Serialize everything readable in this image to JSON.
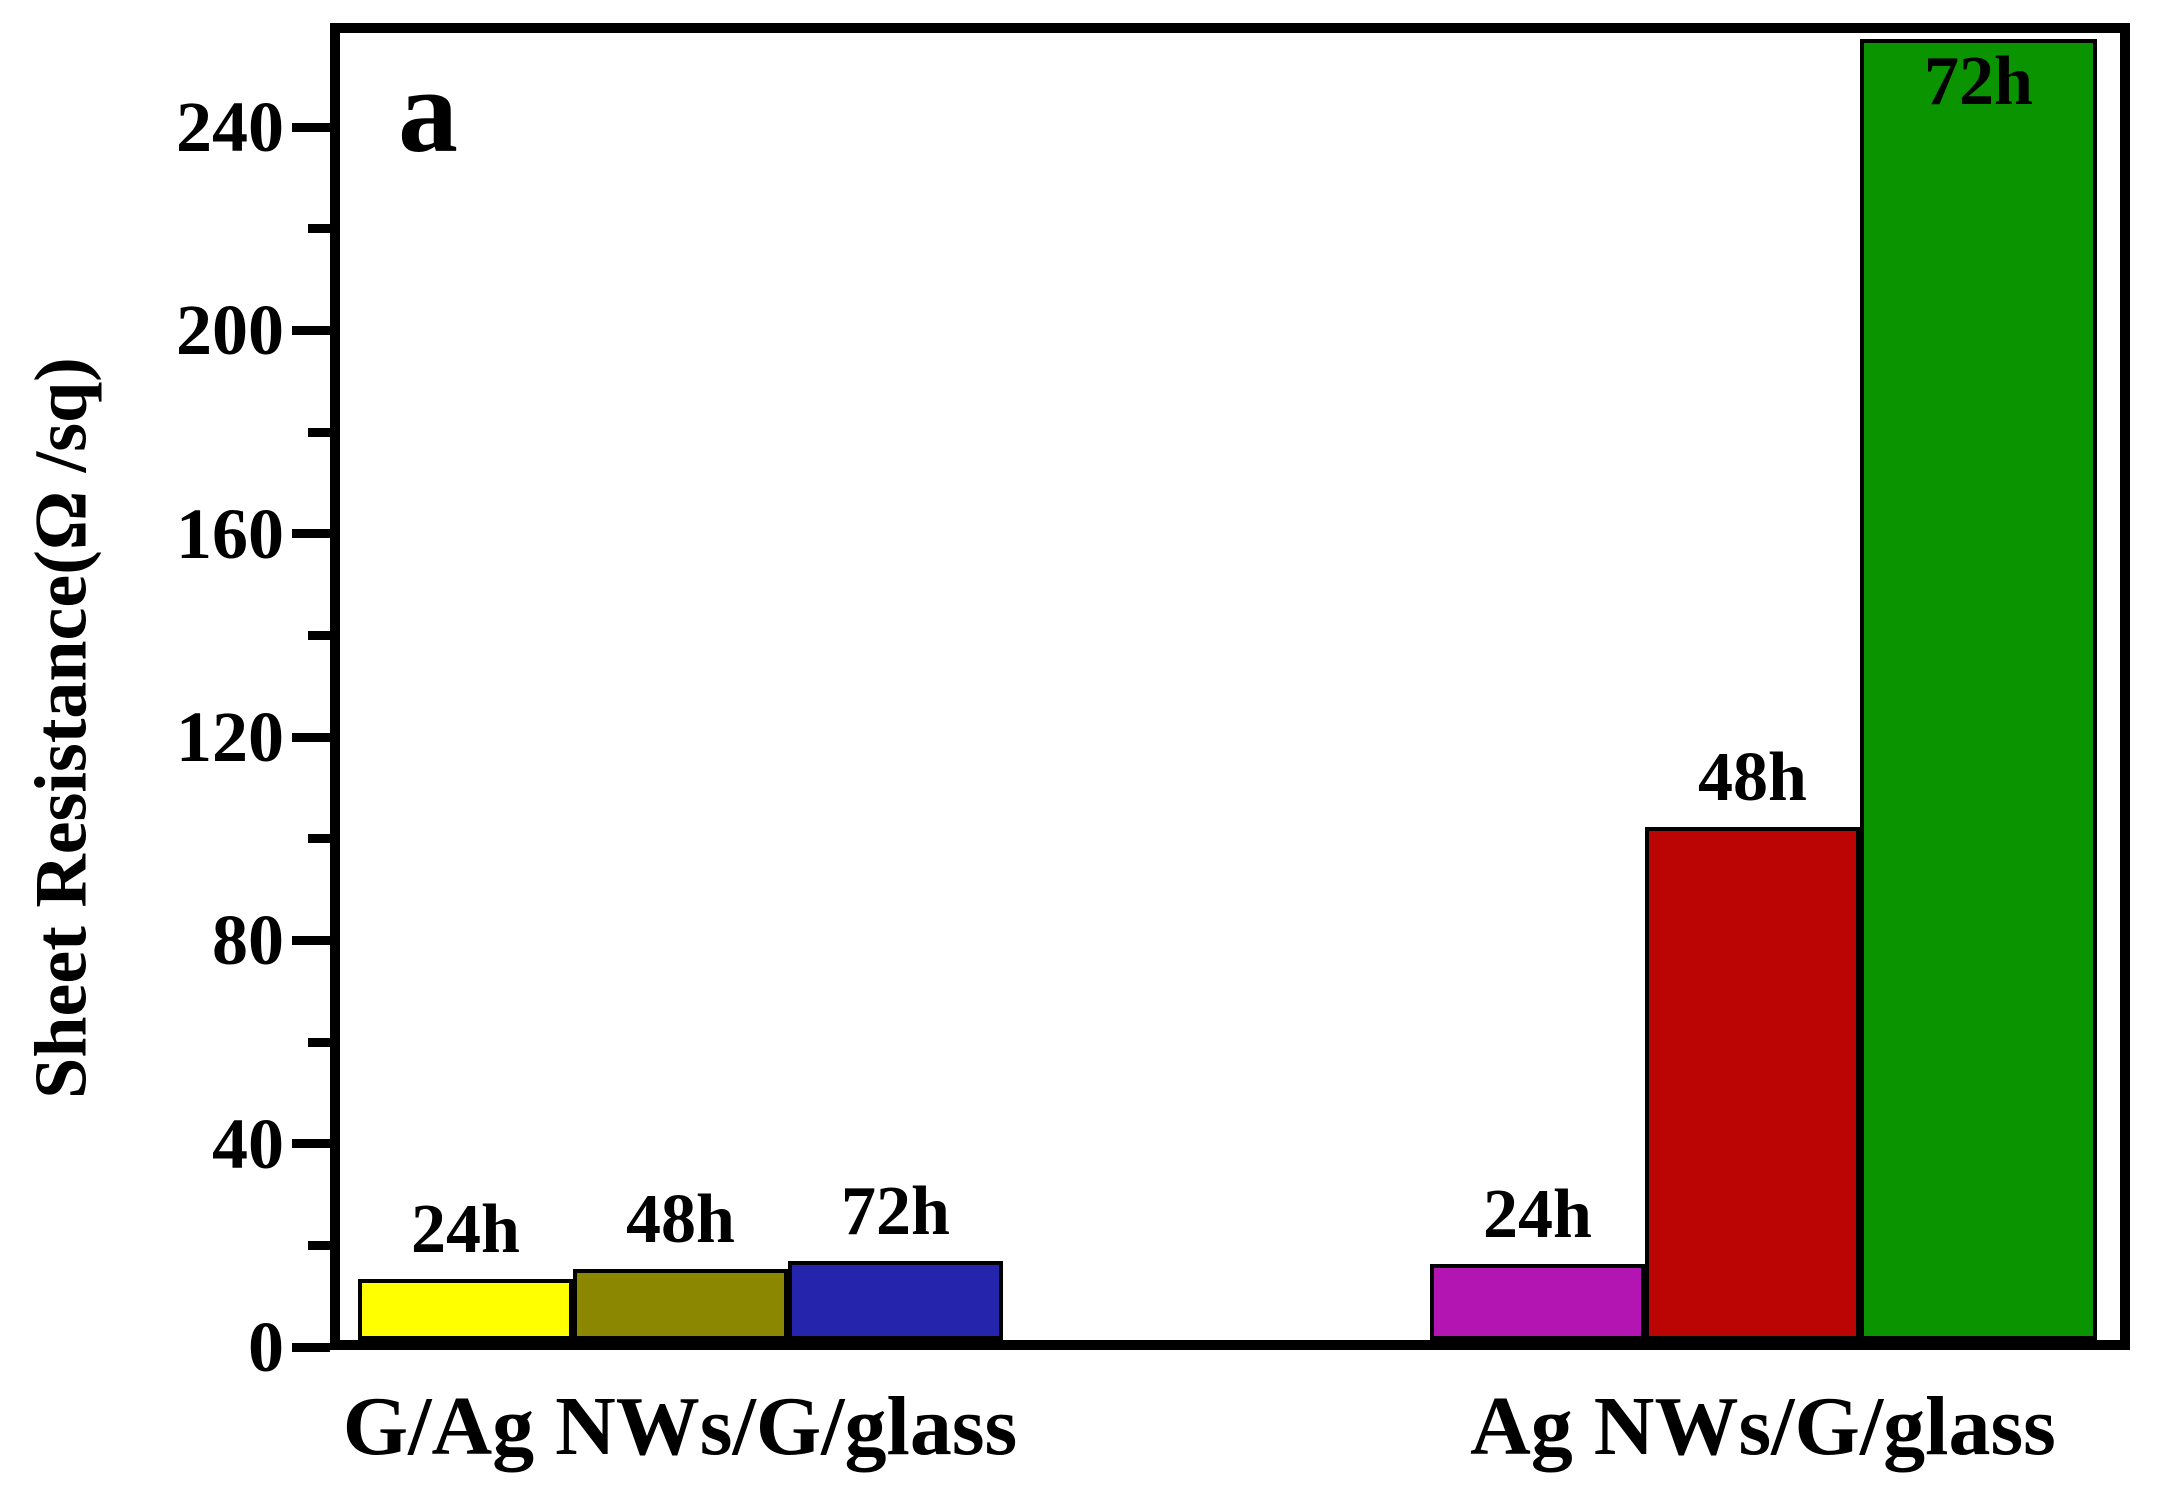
{
  "panel_label": "a",
  "chart_data": {
    "type": "bar",
    "title": "",
    "xlabel": "",
    "ylabel": "Sheet Resistance(Ω /sq)",
    "ylim": [
      0,
      261
    ],
    "yticks_major": [
      0,
      40,
      80,
      120,
      160,
      200,
      240
    ],
    "yticks_minor": [
      20,
      60,
      100,
      140,
      180,
      220
    ],
    "grid": false,
    "legend": "none",
    "categories": [
      "G/Ag NWs/G/glass",
      "Ag NWs/G/glass"
    ],
    "groups": [
      {
        "label": "G/Ag NWs/G/glass",
        "bars": [
          {
            "label": "24h",
            "value": 12,
            "color": "#FFFF00",
            "label_position": "above"
          },
          {
            "label": "48h",
            "value": 14,
            "color": "#8B8700",
            "label_position": "above"
          },
          {
            "label": "72h",
            "value": 15.5,
            "color": "#2424AC",
            "label_position": "above"
          }
        ]
      },
      {
        "label": "Ag NWs/G/glass",
        "bars": [
          {
            "label": "24h",
            "value": 15,
            "color": "#B315B3",
            "label_position": "above"
          },
          {
            "label": "48h",
            "value": 101,
            "color": "#BB0505",
            "label_position": "above"
          },
          {
            "label": "72h",
            "value": 256,
            "color": "#0A9400",
            "label_position": "inside-top"
          }
        ]
      }
    ]
  }
}
